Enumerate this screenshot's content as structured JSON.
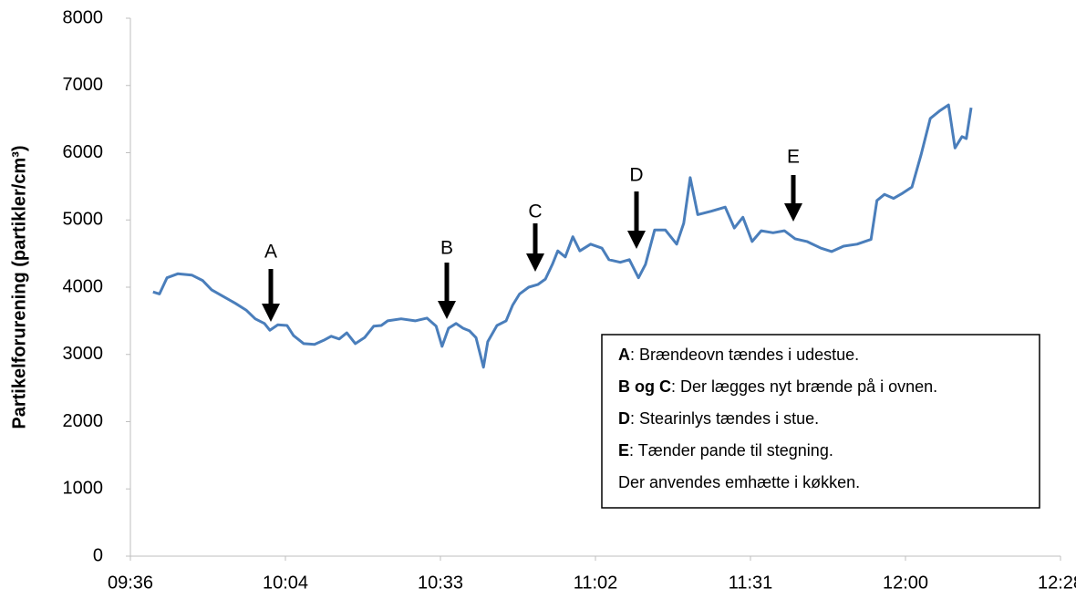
{
  "chart_data": {
    "type": "line",
    "y_label": "Partikelforurening (partikler/cm³)",
    "x": [
      580.2,
      581.4,
      582.8,
      584.8,
      587.4,
      589.4,
      591.1,
      593.3,
      595.5,
      597.5,
      599.2,
      600.9,
      601.9,
      603.4,
      605.1,
      606.3,
      608.2,
      610.2,
      611.9,
      613.3,
      614.8,
      616.2,
      617.8,
      619.5,
      621.2,
      622.6,
      623.8,
      626.3,
      628.9,
      631.1,
      632.8,
      633.9,
      635.1,
      636.5,
      637.8,
      639.0,
      640.2,
      641.6,
      642.4,
      644.1,
      645.8,
      647.0,
      648.3,
      650.0,
      651.7,
      653.1,
      654.4,
      655.4,
      656.8,
      658.2,
      659.5,
      661.5,
      663.6,
      664.9,
      667.0,
      668.7,
      670.4,
      671.7,
      673.4,
      675.4,
      677.5,
      678.8,
      680.0,
      681.4,
      683.9,
      686.5,
      688.2,
      689.8,
      691.5,
      693.2,
      695.4,
      697.5,
      699.5,
      701.7,
      704.3,
      706.3,
      708.5,
      711.0,
      713.6,
      714.7,
      716.1,
      717.8,
      719.5,
      721.2,
      722.9,
      724.6,
      726.3,
      728.0,
      729.2,
      730.5,
      731.3,
      732.2
    ],
    "series": [
      {
        "name": "Partikelforurening",
        "color": "#4a7ebb",
        "values": [
          3930,
          3900,
          4140,
          4200,
          4180,
          4100,
          3960,
          3860,
          3760,
          3660,
          3530,
          3460,
          3360,
          3440,
          3430,
          3280,
          3160,
          3150,
          3210,
          3270,
          3230,
          3320,
          3160,
          3250,
          3420,
          3430,
          3500,
          3530,
          3500,
          3540,
          3420,
          3120,
          3390,
          3460,
          3390,
          3350,
          3250,
          2810,
          3190,
          3430,
          3500,
          3730,
          3900,
          4000,
          4040,
          4120,
          4340,
          4540,
          4450,
          4750,
          4540,
          4640,
          4580,
          4410,
          4370,
          4410,
          4140,
          4340,
          4850,
          4850,
          4640,
          4950,
          5630,
          5080,
          5130,
          5190,
          4880,
          5040,
          4680,
          4840,
          4810,
          4840,
          4720,
          4680,
          4580,
          4530,
          4610,
          4640,
          4710,
          5290,
          5380,
          5320,
          5400,
          5490,
          5970,
          6510,
          6620,
          6710,
          6070,
          6240,
          6210,
          6670
        ]
      }
    ],
    "xlim": [
      576,
      748.8
    ],
    "xticks": [
      {
        "value": 576,
        "label": "09:36"
      },
      {
        "value": 604.8,
        "label": "10:04"
      },
      {
        "value": 633.6,
        "label": "10:33"
      },
      {
        "value": 662.4,
        "label": "11:02"
      },
      {
        "value": 691.2,
        "label": "11:31"
      },
      {
        "value": 720,
        "label": "12:00"
      },
      {
        "value": 748.8,
        "label": "12:28"
      }
    ],
    "ylim": [
      0,
      8000
    ],
    "yticks": [
      0,
      1000,
      2000,
      3000,
      4000,
      5000,
      6000,
      7000,
      8000
    ],
    "grid": false,
    "annotations": [
      "A",
      "B",
      "C",
      "D",
      "E"
    ],
    "notes": [
      {
        "bold": "A",
        "text": ": Brændeovn tændes i udestue."
      },
      {
        "bold": "B og C",
        "text": ": Der lægges nyt brænde på i ovnen."
      },
      {
        "bold": "D",
        "text": ": Stearinlys tændes i stue."
      },
      {
        "bold": "E",
        "text": ": Tænder pande til stegning."
      },
      {
        "text": "Der anvendes emhætte i køkken."
      }
    ]
  }
}
